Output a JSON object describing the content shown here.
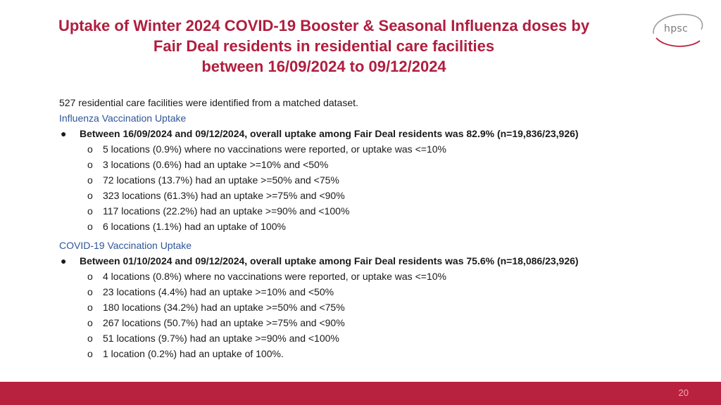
{
  "header": {
    "title_lines": [
      "Uptake of Winter 2024 COVID-19 Booster & Seasonal Influenza doses by",
      "Fair Deal residents in residential care facilities",
      "between 16/09/2024 to 09/12/2024"
    ],
    "logo_text": "hpsc"
  },
  "intro": "527 residential care facilities were identified from a matched dataset.",
  "influenza": {
    "heading": "Influenza Vaccination Uptake",
    "summary": "Between 16/09/2024 and 09/12/2024, overall uptake among Fair Deal residents was 82.9% (n=19,836/23,926)",
    "items": [
      "5 locations (0.9%) where no vaccinations were reported, or uptake was <=10%",
      "3 locations (0.6%) had an uptake >=10% and <50%",
      "72 locations (13.7%) had an uptake >=50% and <75%",
      "323 locations (61.3%) had an uptake >=75% and <90%",
      "117 locations (22.2%) had an uptake >=90% and <100%",
      "6 locations (1.1%) had an uptake of 100%"
    ]
  },
  "covid": {
    "heading": "COVID-19 Vaccination Uptake",
    "summary": "Between 01/10/2024 and 09/12/2024, overall uptake among Fair Deal residents was 75.6% (n=18,086/23,926)",
    "items": [
      "4 locations (0.8%) where no vaccinations were reported, or uptake was <=10%",
      "23 locations (4.4%) had an uptake >=10% and <50%",
      "180 locations (34.2%) had an uptake >=50% and <75%",
      "267 locations (50.7%) had an uptake >=75% and <90%",
      "51 locations (9.7%) had an uptake >=90% and <100%",
      "1 location (0.2%) had an uptake of 100%."
    ]
  },
  "footer": {
    "page_number": "20"
  },
  "colors": {
    "title": "#b01e3e",
    "heading": "#2f5597",
    "footer_bar": "#b9223f"
  }
}
